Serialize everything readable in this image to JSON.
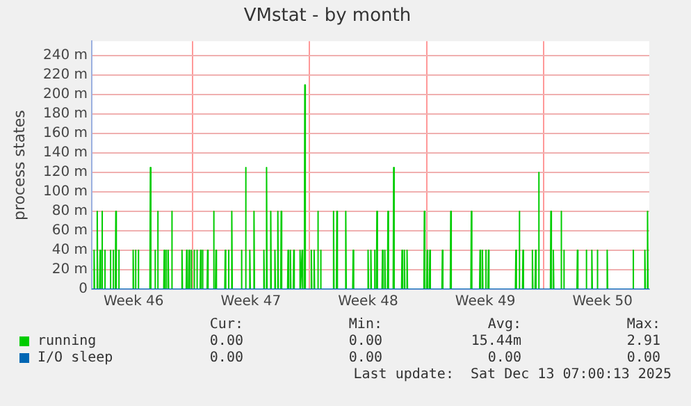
{
  "chart_data": {
    "type": "line",
    "title": "VMstat - by month",
    "ylabel": "process states",
    "xlim": [
      "2025-11-10T00:00",
      "2025-12-13T07:00"
    ],
    "xticks": [
      {
        "value": "2025-11-12T12:00",
        "label": "Week 46"
      },
      {
        "value": "2025-11-16",
        "label": null
      },
      {
        "value": "2025-11-19T12:00",
        "label": "Week 47"
      },
      {
        "value": "2025-11-23",
        "label": null
      },
      {
        "value": "2025-11-26T12:00",
        "label": "Week 48"
      },
      {
        "value": "2025-11-30",
        "label": null
      },
      {
        "value": "2025-12-03T12:00",
        "label": "Week 49"
      },
      {
        "value": "2025-12-07",
        "label": null
      },
      {
        "value": "2025-12-10T12:00",
        "label": "Week 50"
      }
    ],
    "ylim": [
      0,
      255
    ],
    "yticks": [
      0,
      {
        "value": 20,
        "label": "20 m"
      },
      {
        "value": 40,
        "label": "40 m"
      },
      {
        "value": 60,
        "label": "60 m"
      },
      {
        "value": 80,
        "label": "80 m"
      },
      {
        "value": 100,
        "label": "100 m"
      },
      {
        "value": 120,
        "label": "120 m"
      },
      {
        "value": 140,
        "label": "140 m"
      },
      {
        "value": 160,
        "label": "160 m"
      },
      {
        "value": 180,
        "label": "180 m"
      },
      {
        "value": 200,
        "label": "200 m"
      },
      {
        "value": 220,
        "label": "220 m"
      },
      {
        "value": 240,
        "label": "240 m"
      }
    ],
    "grid": true,
    "legend": "bottom",
    "marker": "none",
    "line_style": "solid",
    "series": [
      {
        "name": "running",
        "color": "#00cc00",
        "x": [
          "2025-11-10T00:00",
          "2025-11-10T02:40",
          "2025-11-10T03:20",
          "2025-11-10T04:00",
          "2025-11-10T07:10",
          "2025-11-10T07:50",
          "2025-11-10T08:30",
          "2025-11-10T11:20",
          "2025-11-10T12:00",
          "2025-11-10T12:40",
          "2025-11-10T14:00",
          "2025-11-10T14:40",
          "2025-11-10T15:20",
          "2025-11-10T18:00",
          "2025-11-10T18:40",
          "2025-11-10T19:20",
          "2025-11-11T02:00",
          "2025-11-11T02:40",
          "2025-11-11T03:20",
          "2025-11-11T06:00",
          "2025-11-11T06:40",
          "2025-11-11T07:20",
          "2025-11-11T09:50",
          "2025-11-11T10:30",
          "2025-11-11T11:10",
          "2025-11-11T14:00",
          "2025-11-11T14:40",
          "2025-11-11T15:20",
          "2025-11-12T10:40",
          "2025-11-12T11:20",
          "2025-11-12T12:00",
          "2025-11-12T14:00",
          "2025-11-12T14:40",
          "2025-11-12T15:20",
          "2025-11-12T18:00",
          "2025-11-12T18:40",
          "2025-11-12T19:20",
          "2025-11-13T11:20",
          "2025-11-13T12:00",
          "2025-11-13T12:40",
          "2025-11-13T18:00",
          "2025-11-13T18:40",
          "2025-11-13T19:20",
          "2025-11-13T21:50",
          "2025-11-13T22:30",
          "2025-11-13T23:10",
          "2025-11-14T07:10",
          "2025-11-14T07:50",
          "2025-11-14T08:30",
          "2025-11-14T09:50",
          "2025-11-14T10:30",
          "2025-11-14T11:10",
          "2025-11-14T12:50",
          "2025-11-14T13:30",
          "2025-11-14T14:10",
          "2025-11-14T18:00",
          "2025-11-14T18:40",
          "2025-11-14T19:20",
          "2025-11-15T08:40",
          "2025-11-15T09:20",
          "2025-11-15T10:00",
          "2025-11-15T15:20",
          "2025-11-15T16:00",
          "2025-11-15T16:40",
          "2025-11-15T18:50",
          "2025-11-15T19:30",
          "2025-11-15T20:10",
          "2025-11-15T21:50",
          "2025-11-15T22:30",
          "2025-11-15T23:10",
          "2025-11-16T02:00",
          "2025-11-16T02:40",
          "2025-11-16T03:20",
          "2025-11-16T06:00",
          "2025-11-16T06:40",
          "2025-11-16T07:20",
          "2025-11-16T11:20",
          "2025-11-16T12:00",
          "2025-11-16T12:40",
          "2025-11-16T14:00",
          "2025-11-16T14:40",
          "2025-11-16T15:20",
          "2025-11-16T21:20",
          "2025-11-16T22:00",
          "2025-11-16T22:40",
          "2025-11-17T06:00",
          "2025-11-17T06:40",
          "2025-11-17T07:20",
          "2025-11-17T09:20",
          "2025-11-17T10:00",
          "2025-11-17T10:40",
          "2025-11-17T22:40",
          "2025-11-17T23:20",
          "2025-11-18T00:00",
          "2025-11-18T03:20",
          "2025-11-18T04:00",
          "2025-11-18T04:40",
          "2025-11-18T08:00",
          "2025-11-18T08:40",
          "2025-11-18T09:20",
          "2025-11-18T21:50",
          "2025-11-18T22:30",
          "2025-11-18T23:10",
          "2025-11-19T03:50",
          "2025-11-19T04:30",
          "2025-11-19T05:10",
          "2025-11-19T09:50",
          "2025-11-19T10:30",
          "2025-11-19T11:10",
          "2025-11-19T15:50",
          "2025-11-19T16:30",
          "2025-11-19T17:10",
          "2025-11-20T06:00",
          "2025-11-20T06:40",
          "2025-11-20T07:20",
          "2025-11-20T09:50",
          "2025-11-20T10:30",
          "2025-11-20T11:10",
          "2025-11-20T15:50",
          "2025-11-20T16:30",
          "2025-11-20T17:10",
          "2025-11-20T21:50",
          "2025-11-20T22:30",
          "2025-11-20T23:10",
          "2025-11-21T02:00",
          "2025-11-21T02:40",
          "2025-11-21T03:20",
          "2025-11-21T06:50",
          "2025-11-21T07:30",
          "2025-11-21T08:10",
          "2025-11-21T16:40",
          "2025-11-21T17:20",
          "2025-11-21T18:00",
          "2025-11-21T20:00",
          "2025-11-21T20:40",
          "2025-11-21T21:20",
          "2025-11-22T00:50",
          "2025-11-22T01:30",
          "2025-11-22T02:10",
          "2025-11-22T09:50",
          "2025-11-22T10:30",
          "2025-11-22T11:10",
          "2025-11-22T12:50",
          "2025-11-22T13:30",
          "2025-11-22T14:10",
          "2025-11-22T16:40",
          "2025-11-22T17:20",
          "2025-11-22T18:00",
          "2025-11-23T02:00",
          "2025-11-23T02:40",
          "2025-11-23T03:20",
          "2025-11-23T06:00",
          "2025-11-23T06:40",
          "2025-11-23T07:20",
          "2025-11-23T11:20",
          "2025-11-23T12:00",
          "2025-11-23T12:40",
          "2025-11-23T15:20",
          "2025-11-23T16:00",
          "2025-11-23T16:40",
          "2025-11-24T09:50",
          "2025-11-24T10:30",
          "2025-11-24T11:10",
          "2025-11-24T14:40",
          "2025-11-24T15:20",
          "2025-11-24T16:00",
          "2025-11-25T03:20",
          "2025-11-25T04:00",
          "2025-11-25T04:40",
          "2025-11-25T14:00",
          "2025-11-25T14:40",
          "2025-11-25T15:20",
          "2025-11-26T11:20",
          "2025-11-26T12:00",
          "2025-11-26T12:40",
          "2025-11-26T15:20",
          "2025-11-26T16:00",
          "2025-11-26T16:40",
          "2025-11-26T20:40",
          "2025-11-26T21:20",
          "2025-11-26T22:00",
          "2025-11-27T00:00",
          "2025-11-27T00:40",
          "2025-11-27T01:20",
          "2025-11-27T08:00",
          "2025-11-27T08:40",
          "2025-11-27T09:20",
          "2025-11-27T11:20",
          "2025-11-27T12:00",
          "2025-11-27T12:40",
          "2025-11-27T15:50",
          "2025-11-27T16:30",
          "2025-11-27T17:10",
          "2025-11-28T00:00",
          "2025-11-28T00:40",
          "2025-11-28T01:20",
          "2025-11-28T12:00",
          "2025-11-28T12:40",
          "2025-11-28T13:20",
          "2025-11-28T15:20",
          "2025-11-28T16:00",
          "2025-11-28T16:40",
          "2025-11-28T19:10",
          "2025-11-28T19:50",
          "2025-11-28T20:30",
          "2025-11-29T20:00",
          "2025-11-29T20:40",
          "2025-11-29T21:20",
          "2025-11-30T00:00",
          "2025-11-30T00:40",
          "2025-11-30T01:20",
          "2025-11-30T03:50",
          "2025-11-30T04:30",
          "2025-11-30T05:10",
          "2025-11-30T21:50",
          "2025-11-30T22:30",
          "2025-11-30T23:10",
          "2025-12-01T09:50",
          "2025-12-01T10:30",
          "2025-12-01T11:10",
          "2025-12-02T15:20",
          "2025-12-02T16:00",
          "2025-12-02T16:40",
          "2025-12-03T03:50",
          "2025-12-03T04:30",
          "2025-12-03T05:10",
          "2025-12-03T07:10",
          "2025-12-03T07:50",
          "2025-12-03T08:30",
          "2025-12-03T12:00",
          "2025-12-03T12:40",
          "2025-12-03T13:20",
          "2025-12-03T15:50",
          "2025-12-03T16:30",
          "2025-12-03T17:10",
          "2025-12-05T07:10",
          "2025-12-05T07:50",
          "2025-12-05T08:30",
          "2025-12-05T12:00",
          "2025-12-05T12:40",
          "2025-12-05T13:20",
          "2025-12-05T17:20",
          "2025-12-05T18:00",
          "2025-12-05T18:40",
          "2025-12-06T06:50",
          "2025-12-06T07:30",
          "2025-12-06T08:10",
          "2025-12-06T11:20",
          "2025-12-06T12:00",
          "2025-12-06T12:40",
          "2025-12-06T15:50",
          "2025-12-06T16:30",
          "2025-12-06T17:10",
          "2025-12-07T09:20",
          "2025-12-07T10:00",
          "2025-12-07T10:40",
          "2025-12-07T12:50",
          "2025-12-07T13:30",
          "2025-12-07T14:10",
          "2025-12-08T00:00",
          "2025-12-08T00:40",
          "2025-12-08T01:20",
          "2025-12-08T03:50",
          "2025-12-08T04:30",
          "2025-12-08T05:10",
          "2025-12-08T23:20",
          "2025-12-09T00:00",
          "2025-12-09T00:40",
          "2025-12-09T12:00",
          "2025-12-09T12:40",
          "2025-12-09T13:20",
          "2025-12-09T20:00",
          "2025-12-09T20:40",
          "2025-12-09T21:20",
          "2025-12-10T03:50",
          "2025-12-10T04:30",
          "2025-12-10T05:10",
          "2025-12-10T18:00",
          "2025-12-10T18:40",
          "2025-12-10T19:20",
          "2025-12-12T07:10",
          "2025-12-12T07:50",
          "2025-12-12T08:30",
          "2025-12-13T00:00",
          "2025-12-13T00:40",
          "2025-12-13T01:20",
          "2025-12-13T03:50",
          "2025-12-13T04:30",
          "2025-12-13T05:10",
          "2025-12-13T07:00"
        ],
        "values": [
          0,
          0,
          40,
          0,
          0,
          80,
          0,
          0,
          40,
          0,
          0,
          80,
          0,
          0,
          40,
          0,
          0,
          40,
          0,
          0,
          40,
          0,
          0,
          80,
          0,
          0,
          40,
          0,
          0,
          40,
          0,
          0,
          40,
          0,
          0,
          40,
          0,
          0,
          125,
          0,
          0,
          40,
          0,
          0,
          80,
          0,
          0,
          40,
          0,
          0,
          40,
          0,
          0,
          40,
          0,
          0,
          80,
          0,
          0,
          40,
          0,
          0,
          40,
          0,
          0,
          40,
          0,
          0,
          40,
          0,
          0,
          40,
          0,
          0,
          40,
          0,
          0,
          40,
          0,
          0,
          40,
          0,
          0,
          40,
          0,
          0,
          80,
          0,
          0,
          40,
          0,
          0,
          40,
          0,
          0,
          40,
          0,
          0,
          80,
          0,
          0,
          40,
          0,
          0,
          125,
          0,
          0,
          40,
          0,
          0,
          80,
          0,
          0,
          40,
          0,
          0,
          125,
          0,
          0,
          80,
          0,
          0,
          40,
          0,
          0,
          80,
          0,
          0,
          80,
          0,
          0,
          40,
          0,
          0,
          40,
          0,
          0,
          40,
          0,
          0,
          40,
          0,
          0,
          40,
          0,
          0,
          210,
          0,
          0,
          40,
          0,
          0,
          40,
          0,
          0,
          80,
          0,
          0,
          40,
          0,
          0,
          80,
          0,
          0,
          80,
          0,
          0,
          80,
          0,
          0,
          40,
          0,
          0,
          40,
          0,
          0,
          40,
          0,
          0,
          40,
          0,
          0,
          80,
          0,
          0,
          40,
          0,
          0,
          40,
          0,
          0,
          80,
          0,
          0,
          125,
          0,
          0,
          40,
          0,
          0,
          40,
          0,
          0,
          40,
          0,
          0,
          80,
          0,
          0,
          40,
          0,
          0,
          40,
          0,
          0,
          40,
          0,
          0,
          80,
          0,
          0,
          80,
          0,
          0,
          40,
          0,
          0,
          40,
          0,
          0,
          40,
          0,
          0,
          40,
          0,
          0,
          40,
          0,
          0,
          80,
          0,
          0,
          40,
          0,
          0,
          40,
          0,
          0,
          40,
          0,
          0,
          120,
          0,
          0,
          80,
          0,
          0,
          40,
          0,
          0,
          80,
          0,
          0,
          40,
          0,
          0,
          40,
          0,
          0,
          40,
          0,
          0,
          40,
          0,
          0,
          40,
          0,
          0,
          40,
          0,
          0,
          40,
          0,
          0,
          40,
          0,
          0,
          80,
          0,
          0
        ]
      },
      {
        "name": "I/O sleep",
        "color": "#0066b3",
        "x": [
          "2025-11-10T00:00",
          "2025-12-13T07:00"
        ],
        "values": [
          0,
          0
        ]
      }
    ],
    "annotations": [
      "Cur:",
      "Min:",
      "Avg:",
      "Max:",
      "0.00",
      "0.00",
      "15.44m",
      "2.91",
      "0.00",
      "0.00",
      "0.00",
      "0.00",
      "Last update:  Sat Dec 13 07:00:13 2025"
    ]
  }
}
